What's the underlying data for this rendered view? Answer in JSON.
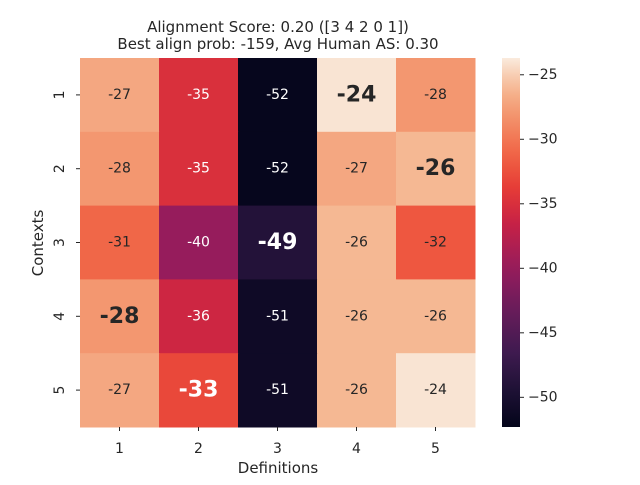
{
  "chart_data": {
    "type": "heatmap",
    "title_line1": "Alignment Score: 0.20 ([3 4 2 0 1])",
    "title_line2": "Best align prob: -159, Avg Human AS: 0.30",
    "xlabel": "Definitions",
    "ylabel": "Contexts",
    "x_categories": [
      "1",
      "2",
      "3",
      "4",
      "5"
    ],
    "y_categories": [
      "1",
      "2",
      "3",
      "4",
      "5"
    ],
    "values": [
      [
        -27,
        -35,
        -52,
        -24,
        -28
      ],
      [
        -28,
        -35,
        -52,
        -27,
        -26
      ],
      [
        -31,
        -40,
        -49,
        -26,
        -32
      ],
      [
        -28,
        -36,
        -51,
        -26,
        -26
      ],
      [
        -27,
        -33,
        -51,
        -26,
        -24
      ]
    ],
    "highlighted": [
      [
        0,
        3
      ],
      [
        1,
        4
      ],
      [
        2,
        2
      ],
      [
        3,
        0
      ],
      [
        4,
        1
      ]
    ],
    "colorbar": {
      "min": -52.3,
      "max": -23.7,
      "ticks": [
        -25,
        -30,
        -35,
        -40,
        -45,
        -50
      ],
      "tick_labels": [
        "−25",
        "−30",
        "−35",
        "−40",
        "−45",
        "−50"
      ],
      "colormap": "rocket"
    }
  }
}
